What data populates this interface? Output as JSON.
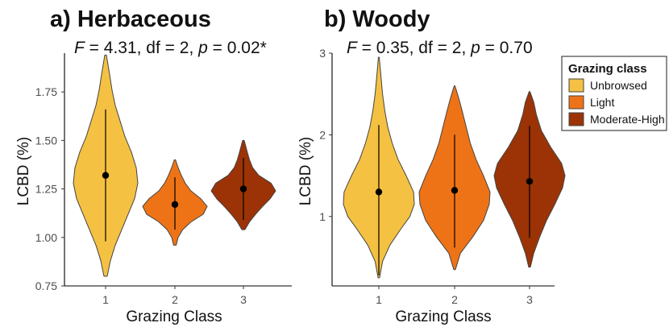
{
  "chart_data": [
    {
      "type": "violin",
      "title": "a) Herbaceous",
      "stat": {
        "F": "4.31",
        "df": "2",
        "p": "0.02*"
      },
      "xlabel": "Grazing Class",
      "ylabel": "LCBD (%)",
      "categories": [
        "1",
        "2",
        "3"
      ],
      "yticks": [
        "0.75",
        "1.00",
        "1.25",
        "1.50",
        "1.75"
      ],
      "ylim": [
        0.75,
        1.95
      ],
      "groups": [
        {
          "category": "1",
          "series": "Unbrowsed",
          "mean": 1.32,
          "line_min": 0.98,
          "line_max": 1.66,
          "range": [
            0.8,
            1.94
          ],
          "density": [
            [
              0.8,
              0.01
            ],
            [
              0.88,
              0.03
            ],
            [
              0.96,
              0.06
            ],
            [
              1.04,
              0.1
            ],
            [
              1.12,
              0.14
            ],
            [
              1.2,
              0.18
            ],
            [
              1.28,
              0.2
            ],
            [
              1.36,
              0.19
            ],
            [
              1.44,
              0.16
            ],
            [
              1.52,
              0.12
            ],
            [
              1.6,
              0.09
            ],
            [
              1.68,
              0.06
            ],
            [
              1.76,
              0.04
            ],
            [
              1.84,
              0.025
            ],
            [
              1.94,
              0.005
            ]
          ]
        },
        {
          "category": "2",
          "series": "Light",
          "mean": 1.17,
          "line_min": 1.04,
          "line_max": 1.31,
          "range": [
            0.96,
            1.4
          ],
          "density": [
            [
              0.96,
              0.02
            ],
            [
              1.0,
              0.05
            ],
            [
              1.04,
              0.12
            ],
            [
              1.08,
              0.25
            ],
            [
              1.12,
              0.44
            ],
            [
              1.16,
              0.5
            ],
            [
              1.2,
              0.4
            ],
            [
              1.24,
              0.25
            ],
            [
              1.28,
              0.16
            ],
            [
              1.32,
              0.1
            ],
            [
              1.36,
              0.05
            ],
            [
              1.4,
              0.01
            ]
          ]
        },
        {
          "category": "3",
          "series": "Moderate-High",
          "mean": 1.25,
          "line_min": 1.09,
          "line_max": 1.41,
          "range": [
            1.04,
            1.5
          ],
          "density": [
            [
              1.04,
              0.02
            ],
            [
              1.08,
              0.08
            ],
            [
              1.12,
              0.16
            ],
            [
              1.16,
              0.25
            ],
            [
              1.2,
              0.35
            ],
            [
              1.24,
              0.42
            ],
            [
              1.28,
              0.36
            ],
            [
              1.32,
              0.2
            ],
            [
              1.36,
              0.12
            ],
            [
              1.4,
              0.08
            ],
            [
              1.44,
              0.05
            ],
            [
              1.5,
              0.01
            ]
          ]
        }
      ]
    },
    {
      "type": "violin",
      "title": "b) Woody",
      "stat": {
        "F": "0.35",
        "df": "2",
        "p": "0.70"
      },
      "xlabel": "Grazing Class",
      "ylabel": "LCBD (%)",
      "categories": [
        "1",
        "2",
        "3"
      ],
      "yticks": [
        "1",
        "2",
        "3"
      ],
      "ylim": [
        0.15,
        3.0
      ],
      "groups": [
        {
          "category": "1",
          "series": "Unbrowsed",
          "mean": 1.3,
          "line_min": 0.28,
          "line_max": 2.12,
          "range": [
            0.25,
            2.95
          ],
          "density": [
            [
              0.25,
              0.01
            ],
            [
              0.45,
              0.05
            ],
            [
              0.65,
              0.15
            ],
            [
              0.85,
              0.3
            ],
            [
              1.0,
              0.42
            ],
            [
              1.15,
              0.48
            ],
            [
              1.3,
              0.47
            ],
            [
              1.5,
              0.37
            ],
            [
              1.7,
              0.26
            ],
            [
              1.9,
              0.18
            ],
            [
              2.1,
              0.12
            ],
            [
              2.3,
              0.08
            ],
            [
              2.5,
              0.05
            ],
            [
              2.7,
              0.03
            ],
            [
              2.95,
              0.005
            ]
          ]
        },
        {
          "category": "2",
          "series": "Light",
          "mean": 1.32,
          "line_min": 0.62,
          "line_max": 2.0,
          "range": [
            0.35,
            2.6
          ],
          "density": [
            [
              0.35,
              0.01
            ],
            [
              0.55,
              0.07
            ],
            [
              0.75,
              0.22
            ],
            [
              0.95,
              0.35
            ],
            [
              1.15,
              0.42
            ],
            [
              1.3,
              0.43
            ],
            [
              1.5,
              0.35
            ],
            [
              1.7,
              0.26
            ],
            [
              1.9,
              0.19
            ],
            [
              2.1,
              0.14
            ],
            [
              2.3,
              0.09
            ],
            [
              2.45,
              0.05
            ],
            [
              2.6,
              0.005
            ]
          ]
        },
        {
          "category": "3",
          "series": "Moderate-High",
          "mean": 1.43,
          "line_min": 0.74,
          "line_max": 2.11,
          "range": [
            0.38,
            2.53
          ],
          "density": [
            [
              0.38,
              0.01
            ],
            [
              0.55,
              0.05
            ],
            [
              0.75,
              0.12
            ],
            [
              0.95,
              0.2
            ],
            [
              1.15,
              0.3
            ],
            [
              1.35,
              0.39
            ],
            [
              1.5,
              0.42
            ],
            [
              1.65,
              0.38
            ],
            [
              1.85,
              0.25
            ],
            [
              2.05,
              0.14
            ],
            [
              2.25,
              0.08
            ],
            [
              2.4,
              0.05
            ],
            [
              2.53,
              0.005
            ]
          ]
        }
      ]
    }
  ],
  "legend": {
    "title": "Grazing class",
    "position": "right",
    "items": [
      {
        "label": "Unbrowsed",
        "color": "#F5C142"
      },
      {
        "label": "Light",
        "color": "#EE7317"
      },
      {
        "label": "Moderate-High",
        "color": "#9B3306"
      }
    ]
  },
  "colors": {
    "outline": "#444444",
    "mean_dot": "#000000",
    "axis": "#000000"
  }
}
